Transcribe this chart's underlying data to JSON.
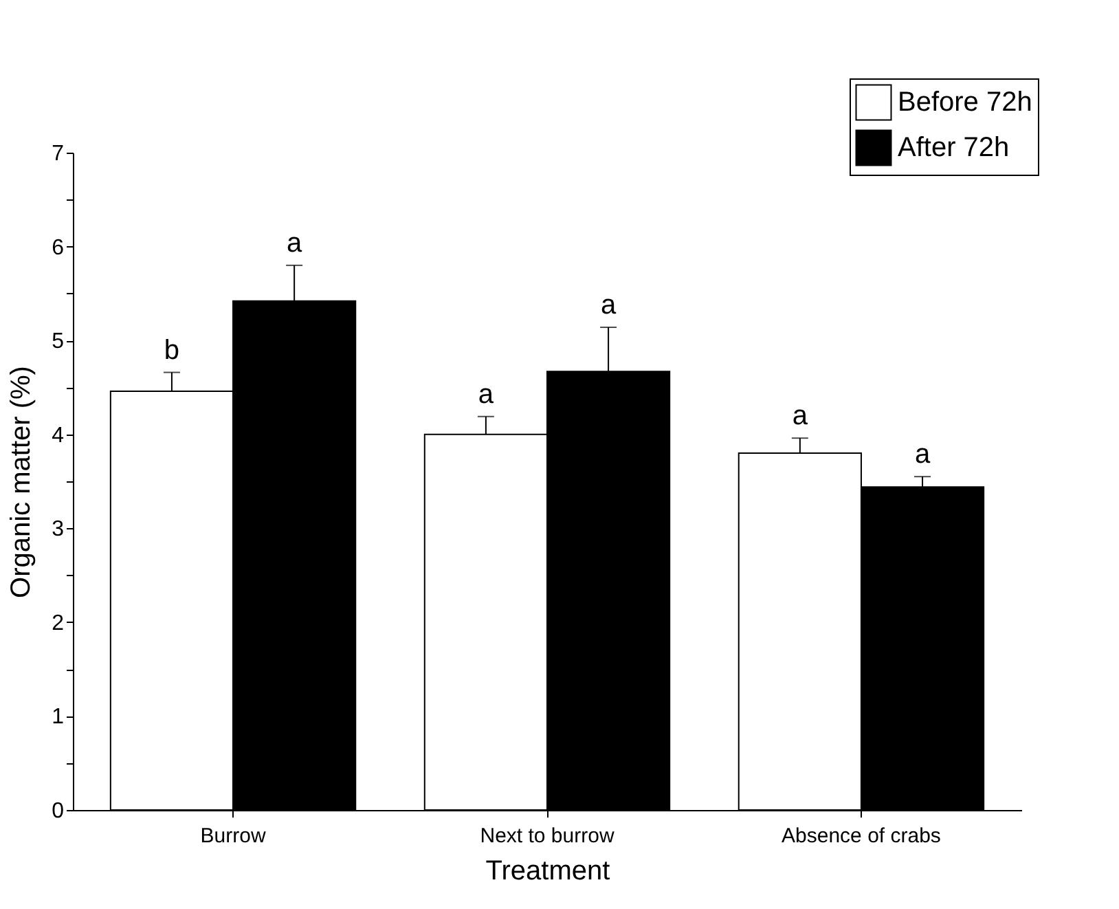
{
  "chart_data": {
    "type": "bar",
    "xlabel": "Treatment",
    "ylabel": "Organic matter (%)",
    "categories": [
      "Burrow",
      "Next to burrow",
      "Absence of crabs"
    ],
    "series": [
      {
        "name": "Before 72h",
        "color": "#ffffff",
        "values": [
          4.46,
          4.0,
          3.8
        ],
        "errors": [
          [
            4.46,
            4.66
          ],
          [
            4.0,
            4.19
          ],
          [
            3.8,
            3.96
          ]
        ]
      },
      {
        "name": "After 72h",
        "color": "#000000",
        "values": [
          5.42,
          4.67,
          3.44
        ],
        "errors": [
          [
            5.42,
            5.8
          ],
          [
            4.67,
            5.14
          ],
          [
            3.44,
            3.55
          ]
        ]
      }
    ],
    "ylim": [
      0,
      7
    ],
    "yticks": [
      0,
      {
        "value": 0.5,
        "label": null
      },
      1,
      {
        "value": 1.5,
        "label": null
      },
      2,
      {
        "value": 2.5,
        "label": null
      },
      3,
      {
        "value": 3.5,
        "label": null
      },
      4,
      {
        "value": 4.5,
        "label": null
      },
      5,
      {
        "value": 5.5,
        "label": null
      },
      6,
      {
        "value": 6.5,
        "label": null
      },
      7
    ],
    "annotations": [
      "b",
      "a",
      "a",
      "a",
      "a",
      "a"
    ],
    "grid": false,
    "legend": "top right"
  }
}
